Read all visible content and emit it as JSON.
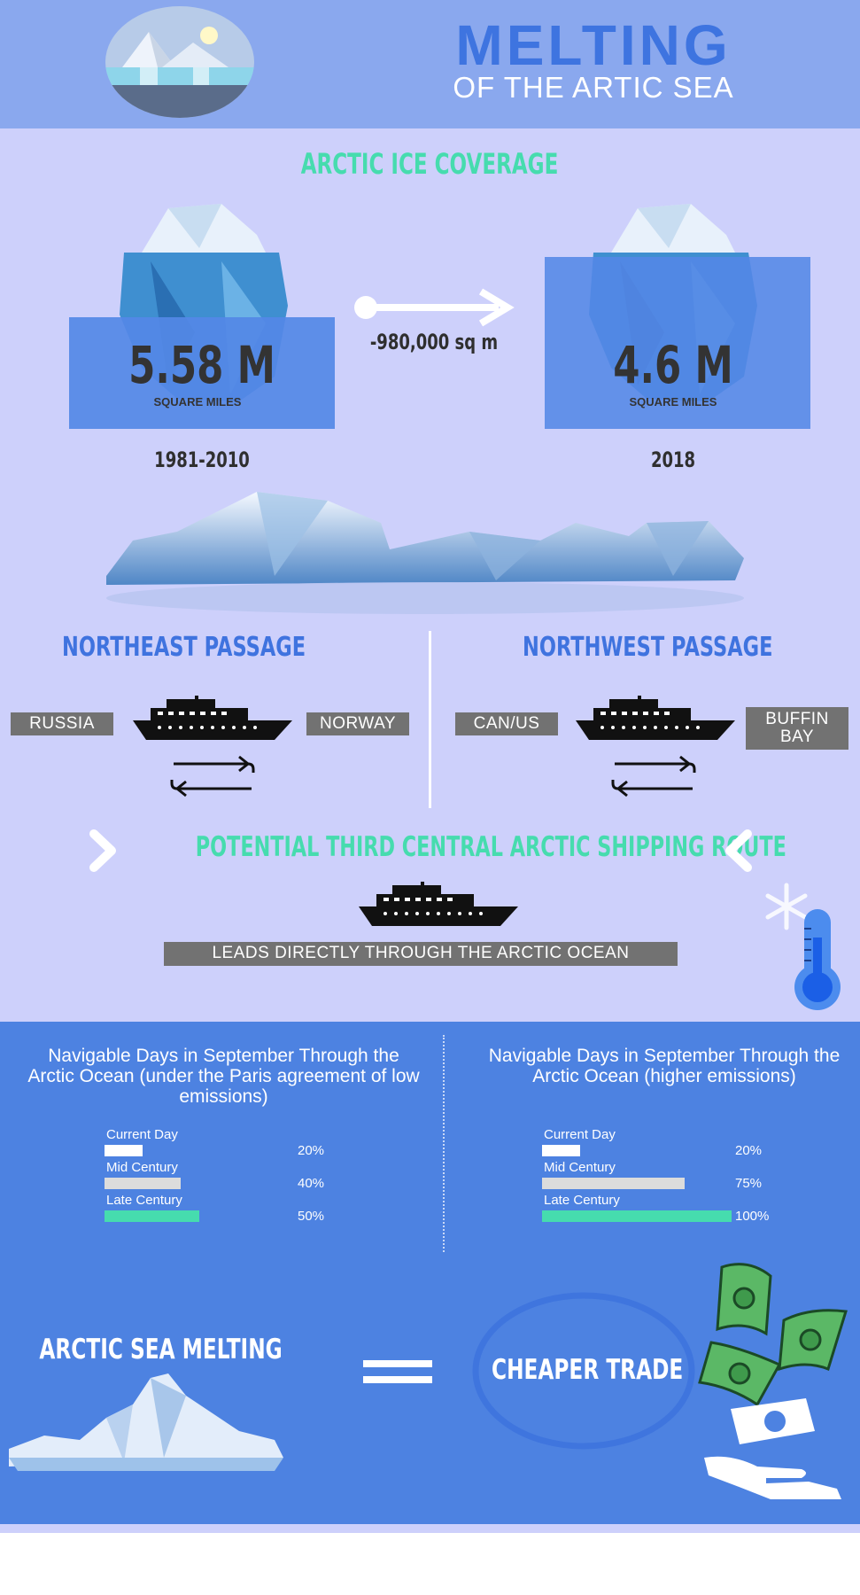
{
  "header": {
    "title": "MELTING",
    "subtitle": "OF THE ARTIC SEA"
  },
  "coverage": {
    "title": "ARCTIC ICE COVERAGE",
    "before": {
      "value": "5.58 M",
      "unit": "SQUARE MILES",
      "period": "1981-2010"
    },
    "after": {
      "value": "4.6 M",
      "unit": "SQUARE MILES",
      "period": "2018"
    },
    "change": "-980,000 sq m"
  },
  "passages": {
    "northeast": {
      "title": "NORTHEAST PASSAGE",
      "from": "RUSSIA",
      "to": "NORWAY"
    },
    "northwest": {
      "title": "NORTHWEST PASSAGE",
      "from": "CAN/US",
      "to_line1": "BUFFIN",
      "to_line2": "BAY"
    }
  },
  "third_route": {
    "title": "POTENTIAL THIRD CENTRAL ARCTIC SHIPPING ROUTE",
    "note": "LEADS DIRECTLY THROUGH THE ARCTIC OCEAN"
  },
  "chart_data": [
    {
      "type": "bar",
      "title": "Navigable Days in September Through the Arctic Ocean (under the Paris agreement of low emissions)",
      "categories": [
        "Current Day",
        "Mid Century",
        "Late Century"
      ],
      "values": [
        20,
        40,
        50
      ],
      "value_labels": [
        "20%",
        "40%",
        "50%"
      ],
      "colors": [
        "#ffffff",
        "#dcdcdc",
        "#46dcae"
      ]
    },
    {
      "type": "bar",
      "title": "Navigable Days in September Through the Arctic Ocean (higher emissions)",
      "categories": [
        "Current Day",
        "Mid Century",
        "Late Century"
      ],
      "values": [
        20,
        75,
        100
      ],
      "value_labels": [
        "20%",
        "75%",
        "100%"
      ],
      "colors": [
        "#ffffff",
        "#dcdcdc",
        "#46dcae"
      ]
    }
  ],
  "conclusion": {
    "left": "ARCTIC SEA MELTING",
    "right": "CHEAPER TRADE"
  },
  "icons": [
    "iceberg-logo-icon",
    "iceberg-icon",
    "arrow-right-icon",
    "ice-shelf-icon",
    "ship-icon",
    "swap-arrows-icon",
    "chevron-right-icon",
    "chevron-left-icon",
    "thermometer-icon",
    "snowflake-icon",
    "equals-icon",
    "money-bills-icon",
    "hand-money-icon"
  ]
}
